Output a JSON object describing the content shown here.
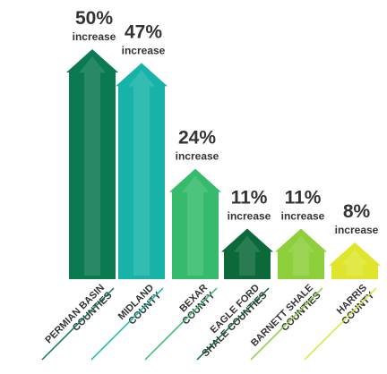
{
  "chart_data": {
    "type": "arrow-bar",
    "categories": [
      [
        "PERMIAN BASIN",
        "COUNTIES"
      ],
      [
        "MIDLAND",
        "COUNTY"
      ],
      [
        "BEXAR",
        "COUNTY"
      ],
      [
        "EAGLE FORD",
        "SHALE COUNTIES"
      ],
      [
        "BARNETT SHALE",
        "COUNTIES"
      ],
      [
        "HARRIS",
        "COUNTY"
      ]
    ],
    "values": [
      50,
      47,
      24,
      11,
      11,
      8
    ],
    "value_labels": [
      "50%",
      "47%",
      "24%",
      "11%",
      "11%",
      "8%"
    ],
    "value_caption": "increase",
    "colors": [
      "#0b7a50",
      "#17b3a8",
      "#36bb6d",
      "#0c6a3a",
      "#8dcf3b",
      "#dfe52c"
    ]
  }
}
